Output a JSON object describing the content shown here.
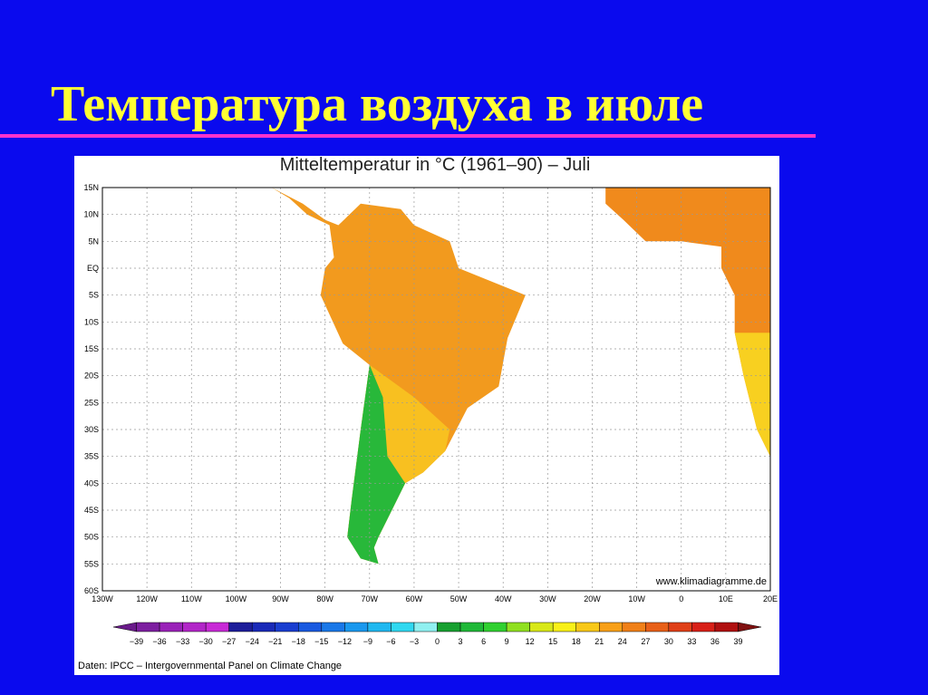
{
  "header": {
    "title": "Температура воздуха в июле"
  },
  "map": {
    "title": "Mitteltemperatur in °C (1961–90) – Juli",
    "lat_labels": [
      "15N",
      "10N",
      "5N",
      "EQ",
      "5S",
      "10S",
      "15S",
      "20S",
      "25S",
      "30S",
      "35S",
      "40S",
      "45S",
      "50S",
      "55S",
      "60S"
    ],
    "lon_labels": [
      "130W",
      "120W",
      "110W",
      "100W",
      "90W",
      "80W",
      "70W",
      "60W",
      "50W",
      "40W",
      "30W",
      "20W",
      "10W",
      "0",
      "10E",
      "20E"
    ],
    "url": "www.klimadiagramme.de",
    "source": "Daten: IPCC – Intergovernmental Panel on Climate Change"
  },
  "colorbar": {
    "labels": [
      "−39",
      "−36",
      "−33",
      "−30",
      "−27",
      "−24",
      "−21",
      "−18",
      "−15",
      "−12",
      "−9",
      "−6",
      "−3",
      "0",
      "3",
      "6",
      "9",
      "12",
      "15",
      "18",
      "21",
      "24",
      "27",
      "30",
      "33",
      "36",
      "39"
    ],
    "colors": [
      "#6a1a8a",
      "#7d1fa0",
      "#9a22b8",
      "#b226c8",
      "#c82ad6",
      "#1e1e9a",
      "#1a2ab8",
      "#1a3ed0",
      "#1a5ae0",
      "#1a78e8",
      "#1a98ee",
      "#20b8f0",
      "#30d8f0",
      "#90f0f0",
      "#18a030",
      "#20b838",
      "#30d030",
      "#90e020",
      "#d8e818",
      "#f8f018",
      "#f8c818",
      "#f8a018",
      "#f08018",
      "#e86018",
      "#e04018",
      "#d82018",
      "#b01010",
      "#801010"
    ]
  }
}
